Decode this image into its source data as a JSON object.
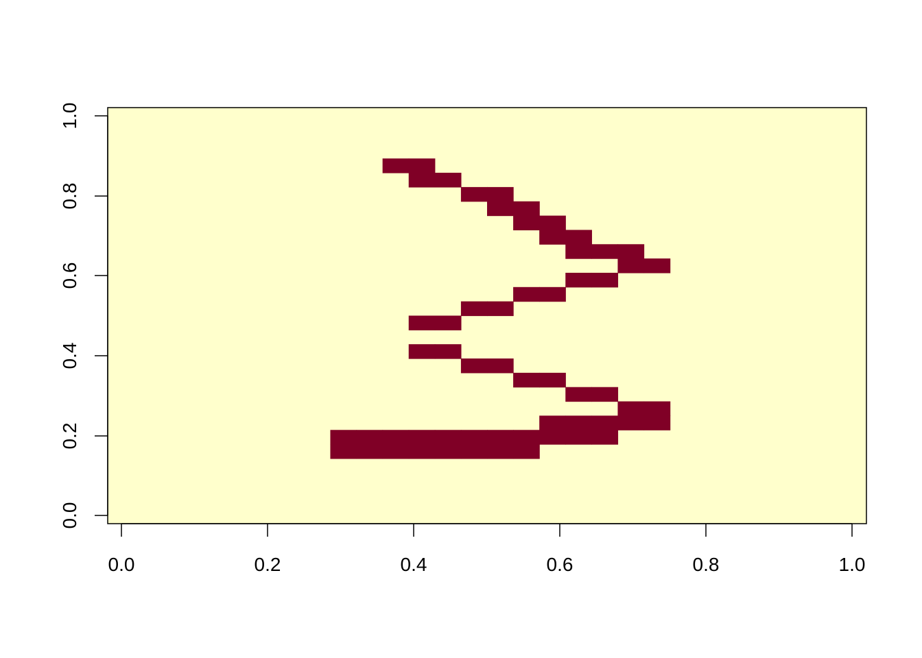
{
  "chart_data": {
    "type": "heatmap",
    "title": "",
    "xlabel": "",
    "ylabel": "",
    "xlim": [
      -0.0185,
      1.0185
    ],
    "ylim": [
      -0.02,
      1.02
    ],
    "x_ticks": [
      "0.0",
      "0.2",
      "0.4",
      "0.6",
      "0.8",
      "1.0"
    ],
    "y_ticks": [
      "0.0",
      "0.2",
      "0.4",
      "0.6",
      "0.8",
      "1.0"
    ],
    "grid": false,
    "legend": "none",
    "colors": {
      "background": "#ffffcc",
      "fill": "#800026",
      "axis": "#000000"
    },
    "x_cells": 28,
    "y_cells": 28,
    "filled_cells": [
      {
        "i": 10,
        "j": 24
      },
      {
        "i": 11,
        "j": 24
      },
      {
        "i": 11,
        "j": 23
      },
      {
        "i": 12,
        "j": 23
      },
      {
        "i": 13,
        "j": 22
      },
      {
        "i": 14,
        "j": 22
      },
      {
        "i": 14,
        "j": 21
      },
      {
        "i": 15,
        "j": 21
      },
      {
        "i": 15,
        "j": 20
      },
      {
        "i": 16,
        "j": 20
      },
      {
        "i": 16,
        "j": 19
      },
      {
        "i": 17,
        "j": 19
      },
      {
        "i": 17,
        "j": 18
      },
      {
        "i": 18,
        "j": 18
      },
      {
        "i": 19,
        "j": 18
      },
      {
        "i": 19,
        "j": 17
      },
      {
        "i": 20,
        "j": 17
      },
      {
        "i": 17,
        "j": 16
      },
      {
        "i": 18,
        "j": 16
      },
      {
        "i": 15,
        "j": 15
      },
      {
        "i": 16,
        "j": 15
      },
      {
        "i": 13,
        "j": 14
      },
      {
        "i": 14,
        "j": 14
      },
      {
        "i": 11,
        "j": 13
      },
      {
        "i": 12,
        "j": 13
      },
      {
        "i": 11,
        "j": 11
      },
      {
        "i": 12,
        "j": 11
      },
      {
        "i": 13,
        "j": 10
      },
      {
        "i": 14,
        "j": 10
      },
      {
        "i": 15,
        "j": 9
      },
      {
        "i": 16,
        "j": 9
      },
      {
        "i": 17,
        "j": 8
      },
      {
        "i": 18,
        "j": 8
      },
      {
        "i": 19,
        "j": 7
      },
      {
        "i": 20,
        "j": 7
      },
      {
        "i": 16,
        "j": 6
      },
      {
        "i": 17,
        "j": 6
      },
      {
        "i": 18,
        "j": 6
      },
      {
        "i": 19,
        "j": 6
      },
      {
        "i": 20,
        "j": 6
      },
      {
        "i": 8,
        "j": 5
      },
      {
        "i": 9,
        "j": 5
      },
      {
        "i": 10,
        "j": 5
      },
      {
        "i": 11,
        "j": 5
      },
      {
        "i": 12,
        "j": 5
      },
      {
        "i": 13,
        "j": 5
      },
      {
        "i": 14,
        "j": 5
      },
      {
        "i": 15,
        "j": 5
      },
      {
        "i": 16,
        "j": 5
      },
      {
        "i": 17,
        "j": 5
      },
      {
        "i": 18,
        "j": 5
      },
      {
        "i": 8,
        "j": 4
      },
      {
        "i": 9,
        "j": 4
      },
      {
        "i": 10,
        "j": 4
      },
      {
        "i": 11,
        "j": 4
      },
      {
        "i": 12,
        "j": 4
      },
      {
        "i": 13,
        "j": 4
      },
      {
        "i": 14,
        "j": 4
      },
      {
        "i": 15,
        "j": 4
      }
    ]
  }
}
